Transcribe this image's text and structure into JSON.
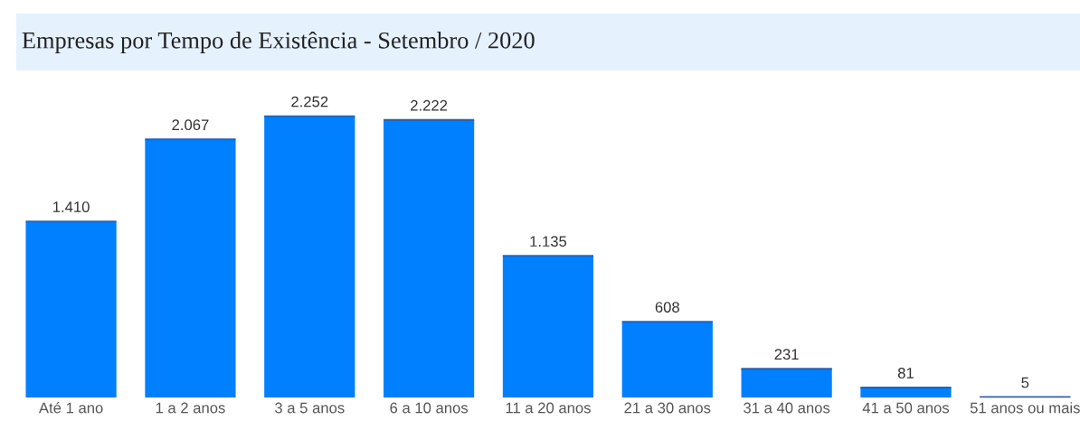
{
  "chart_data": {
    "type": "bar",
    "title": "Empresas por Tempo de Existência - Setembro / 2020",
    "categories": [
      "Até 1 ano",
      "1 a 2 anos",
      "3 a 5 anos",
      "6 a 10 anos",
      "11 a 20 anos",
      "21 a 30 anos",
      "31 a 40 anos",
      "41 a 50 anos",
      "51 anos ou mais"
    ],
    "values": [
      1410,
      2067,
      2252,
      2222,
      1135,
      608,
      231,
      81,
      5
    ],
    "value_labels": [
      "1.410",
      "2.067",
      "2.252",
      "2.222",
      "1.135",
      "608",
      "231",
      "81",
      "5"
    ],
    "color": "#0080ff",
    "tick_labels": "x",
    "grid": false,
    "legend": false
  }
}
